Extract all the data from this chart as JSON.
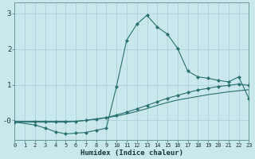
{
  "xlabel": "Humidex (Indice chaleur)",
  "bg_color": "#c8e8ec",
  "grid_color": "#a8cdd3",
  "line_color": "#2a7070",
  "xlim": [
    0,
    23
  ],
  "ylim": [
    -0.55,
    3.3
  ],
  "xticks": [
    0,
    1,
    2,
    3,
    4,
    5,
    6,
    7,
    8,
    9,
    10,
    11,
    12,
    13,
    14,
    15,
    16,
    17,
    18,
    19,
    20,
    21,
    22,
    23
  ],
  "yticks": [
    0,
    1,
    2,
    3
  ],
  "ytick_labels": [
    "-0",
    "1",
    "2",
    "3"
  ],
  "line_main_x": [
    0,
    2,
    3,
    4,
    5,
    6,
    7,
    8,
    9,
    10,
    11,
    12,
    13,
    14,
    15,
    16,
    17,
    18,
    19,
    20,
    21,
    22,
    23
  ],
  "line_main_y": [
    -0.05,
    -0.13,
    -0.22,
    -0.32,
    -0.38,
    -0.36,
    -0.34,
    -0.28,
    -0.22,
    0.95,
    2.25,
    2.7,
    2.95,
    2.62,
    2.42,
    2.02,
    1.38,
    1.22,
    1.18,
    1.12,
    1.08,
    1.22,
    0.62
  ],
  "line_upper_x": [
    0,
    2,
    3,
    4,
    5,
    6,
    7,
    8,
    9,
    10,
    11,
    12,
    13,
    14,
    15,
    16,
    17,
    18,
    19,
    20,
    21,
    22,
    23
  ],
  "line_upper_y": [
    -0.03,
    -0.03,
    -0.03,
    -0.03,
    -0.03,
    -0.03,
    0.0,
    0.04,
    0.08,
    0.15,
    0.23,
    0.32,
    0.42,
    0.52,
    0.62,
    0.7,
    0.78,
    0.85,
    0.9,
    0.95,
    0.98,
    1.02,
    0.98
  ],
  "line_lower_x": [
    0,
    1,
    2,
    3,
    4,
    5,
    6,
    7,
    8,
    9,
    10,
    11,
    12,
    13,
    14,
    15,
    16,
    17,
    18,
    19,
    20,
    21,
    22,
    23
  ],
  "line_lower_y": [
    -0.05,
    -0.05,
    -0.05,
    -0.05,
    -0.05,
    -0.05,
    -0.03,
    0.0,
    0.03,
    0.07,
    0.12,
    0.18,
    0.25,
    0.33,
    0.42,
    0.5,
    0.57,
    0.62,
    0.67,
    0.72,
    0.76,
    0.8,
    0.83,
    0.86
  ]
}
